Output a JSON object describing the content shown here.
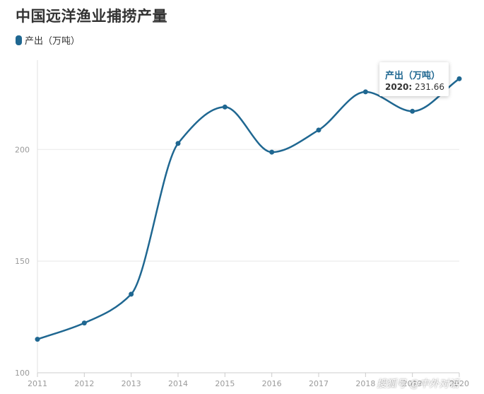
{
  "title": "中国远洋渔业捕捞产量",
  "legend": {
    "label": "产出（万吨）",
    "color": "#1f6791"
  },
  "tooltip": {
    "title": "产出（万吨）",
    "year": "2020:",
    "value": "231.66"
  },
  "watermark": "搜狐号 @中外对话",
  "chart_data": {
    "type": "line",
    "title": "中国远洋渔业捕捞产量",
    "xlabel": "",
    "ylabel": "",
    "categories": [
      "2011",
      "2012",
      "2013",
      "2014",
      "2015",
      "2016",
      "2017",
      "2018",
      "2019",
      "2020"
    ],
    "series": [
      {
        "name": "产出（万吨）",
        "values": [
          115,
          122.3,
          135.2,
          202.7,
          219,
          198.8,
          208.7,
          225.8,
          217.1,
          231.66
        ]
      }
    ],
    "ylim": [
      100,
      240
    ],
    "yticks": [
      "100",
      "150",
      "200"
    ],
    "grid": true,
    "legend_position": "top-left",
    "line_color": "#1f6791"
  }
}
